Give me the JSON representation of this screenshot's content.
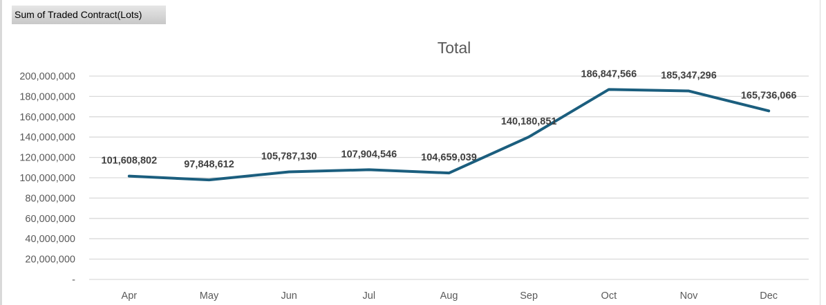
{
  "field_button": "Sum of Traded Contract(Lots)",
  "colors": {
    "line": "#1B5E7E",
    "grid": "#d9d9d9",
    "text": "#595959",
    "label": "#404040"
  },
  "chart_data": {
    "type": "line",
    "title": "Total",
    "xlabel": "",
    "ylabel": "",
    "categories": [
      "Apr",
      "May",
      "Jun",
      "Jul",
      "Aug",
      "Sep",
      "Oct",
      "Nov",
      "Dec"
    ],
    "series": [
      {
        "name": "Total",
        "values": [
          101608802,
          97848612,
          105787130,
          107904546,
          104659039,
          140180851,
          186847566,
          185347296,
          165736066
        ]
      }
    ],
    "data_labels": [
      "101,608,802",
      "97,848,612",
      "105,787,130",
      "107,904,546",
      "104,659,039",
      "140,180,851",
      "186,847,566",
      "185,347,296",
      "165,736,066"
    ],
    "ylim": [
      0,
      200000000
    ],
    "y_ticks": [
      0,
      20000000,
      40000000,
      60000000,
      80000000,
      100000000,
      120000000,
      140000000,
      160000000,
      180000000,
      200000000
    ],
    "y_tick_labels": [
      "-",
      "20,000,000",
      "40,000,000",
      "60,000,000",
      "80,000,000",
      "100,000,000",
      "120,000,000",
      "140,000,000",
      "160,000,000",
      "180,000,000",
      "200,000,000"
    ],
    "grid": true,
    "legend": "none"
  }
}
